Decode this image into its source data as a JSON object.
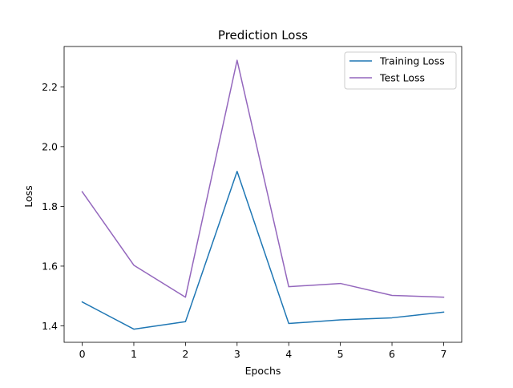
{
  "chart_data": {
    "type": "line",
    "title": "Prediction Loss",
    "xlabel": "Epochs",
    "ylabel": "Loss",
    "x": [
      0,
      1,
      2,
      3,
      4,
      5,
      6,
      7
    ],
    "xlim": [
      -0.35,
      7.35
    ],
    "ylim": [
      1.345,
      2.335
    ],
    "xticks": [
      0,
      1,
      2,
      3,
      4,
      5,
      6,
      7
    ],
    "yticks": [
      1.4,
      1.6,
      1.8,
      2.0,
      2.2
    ],
    "ytick_labels": [
      "1.4",
      "1.6",
      "1.8",
      "2.0",
      "2.2"
    ],
    "grid": false,
    "legend_position": "upper-right",
    "series": [
      {
        "name": "Training Loss",
        "color": "#1f77b4",
        "values": [
          1.48,
          1.389,
          1.414,
          1.917,
          1.408,
          1.42,
          1.427,
          1.446
        ]
      },
      {
        "name": "Test Loss",
        "color": "#9467bd",
        "values": [
          1.849,
          1.603,
          1.496,
          2.289,
          1.531,
          1.542,
          1.502,
          1.496
        ]
      }
    ]
  }
}
